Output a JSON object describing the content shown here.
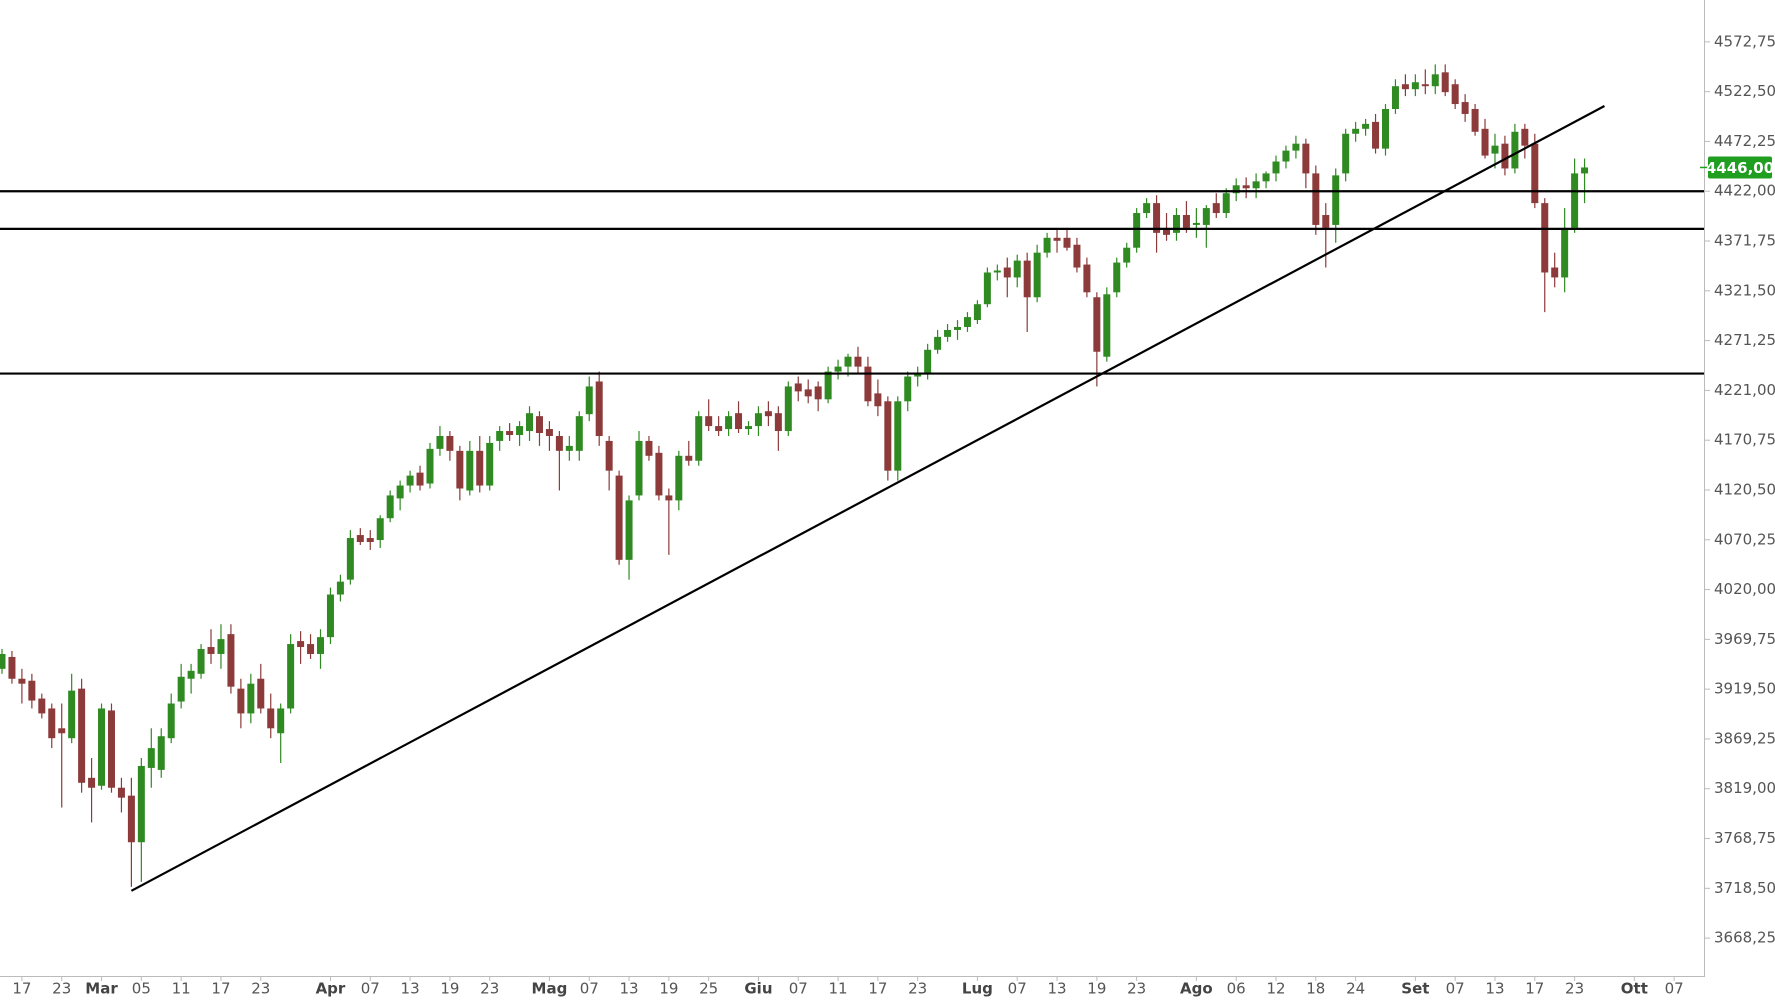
{
  "chart_data": {
    "type": "candlestick",
    "x": [
      "02-15",
      "02-16",
      "02-17",
      "02-18",
      "02-19",
      "02-22",
      "02-23",
      "02-24",
      "02-25",
      "02-26",
      "03-01",
      "03-02",
      "03-03",
      "03-04",
      "03-05",
      "03-08",
      "03-09",
      "03-10",
      "03-11",
      "03-12",
      "03-15",
      "03-16",
      "03-17",
      "03-18",
      "03-19",
      "03-22",
      "03-23",
      "03-24",
      "03-25",
      "03-26",
      "03-29",
      "03-30",
      "03-31",
      "04-01",
      "04-02",
      "04-05",
      "04-06",
      "04-07",
      "04-08",
      "04-09",
      "04-12",
      "04-13",
      "04-14",
      "04-15",
      "04-16",
      "04-19",
      "04-20",
      "04-21",
      "04-22",
      "04-23",
      "04-26",
      "04-27",
      "04-28",
      "04-29",
      "04-30",
      "05-03",
      "05-04",
      "05-05",
      "05-06",
      "05-07",
      "05-10",
      "05-11",
      "05-12",
      "05-13",
      "05-14",
      "05-17",
      "05-18",
      "05-19",
      "05-20",
      "05-21",
      "05-24",
      "05-25",
      "05-26",
      "05-27",
      "05-28",
      "05-31",
      "06-01",
      "06-02",
      "06-03",
      "06-04",
      "06-07",
      "06-08",
      "06-09",
      "06-10",
      "06-11",
      "06-14",
      "06-15",
      "06-16",
      "06-17",
      "06-18",
      "06-21",
      "06-22",
      "06-23",
      "06-24",
      "06-25",
      "06-28",
      "06-29",
      "06-30",
      "07-01",
      "07-02",
      "07-05",
      "07-06",
      "07-07",
      "07-08",
      "07-09",
      "07-12",
      "07-13",
      "07-14",
      "07-15",
      "07-16",
      "07-19",
      "07-20",
      "07-21",
      "07-22",
      "07-23",
      "07-26",
      "07-27",
      "07-28",
      "07-29",
      "07-30",
      "08-02",
      "08-03",
      "08-04",
      "08-05",
      "08-06",
      "08-09",
      "08-10",
      "08-11",
      "08-12",
      "08-13",
      "08-16",
      "08-17",
      "08-18",
      "08-19",
      "08-20",
      "08-23",
      "08-24",
      "08-25",
      "08-26",
      "08-27",
      "08-30",
      "08-31",
      "09-01",
      "09-02",
      "09-03",
      "09-06",
      "09-07",
      "09-08",
      "09-09",
      "09-10",
      "09-13",
      "09-14",
      "09-15",
      "09-16",
      "09-17",
      "09-20",
      "09-21",
      "09-22",
      "09-23",
      "09-24",
      "09-27",
      "09-28",
      "09-29",
      "09-30",
      "10-01",
      "10-04",
      "10-05",
      "10-06",
      "10-07",
      "10-08",
      "10-11",
      "10-12"
    ],
    "open": [
      3940,
      3952,
      3930,
      3928,
      3910,
      3900,
      3880,
      3870,
      3920,
      3830,
      3822,
      3898,
      3820,
      3812,
      3765,
      3840,
      3838,
      3870,
      3907,
      3930,
      3935,
      3962,
      3955,
      3975,
      3920,
      3895,
      3930,
      3900,
      3875,
      3900,
      3968,
      3965,
      3955,
      3972,
      4015,
      4030,
      4075,
      4072,
      4070,
      4092,
      4112,
      4125,
      4138,
      4127,
      4162,
      4175,
      4160,
      4120,
      4160,
      4125,
      4170,
      4180,
      4176,
      4180,
      4195,
      4182,
      4175,
      4160,
      4160,
      4197,
      4230,
      4170,
      4135,
      4050,
      4115,
      4170,
      4158,
      4115,
      4110,
      4155,
      4150,
      4195,
      4185,
      4182,
      4198,
      4182,
      4185,
      4200,
      4198,
      4180,
      4228,
      4222,
      4225,
      4212,
      4240,
      4245,
      4255,
      4245,
      4218,
      4210,
      4140,
      4210,
      4235,
      4238,
      4262,
      4275,
      4282,
      4285,
      4292,
      4308,
      4340,
      4345,
      4335,
      4352,
      4315,
      4360,
      4375,
      4375,
      4368,
      4348,
      4315,
      4255,
      4320,
      4350,
      4365,
      4400,
      4410,
      4385,
      4380,
      4398,
      4388,
      4388,
      4410,
      4400,
      4420,
      4428,
      4425,
      4432,
      4440,
      4452,
      4463,
      4470,
      4440,
      4398,
      4388,
      4440,
      4480,
      4485,
      4492,
      4465,
      4505,
      4530,
      4525,
      4530,
      4528,
      4542,
      4530,
      4512,
      4505,
      4485,
      4460,
      4470,
      4445,
      4485,
      4470,
      4410,
      4345,
      4335,
      4385,
      4440,
      null,
      null,
      null,
      null,
      null,
      null,
      null,
      null,
      null,
      null,
      null,
      null
    ],
    "high": [
      3960,
      3958,
      3940,
      3935,
      3915,
      3905,
      3905,
      3935,
      3930,
      3850,
      3905,
      3905,
      3830,
      3830,
      3850,
      3880,
      3880,
      3915,
      3945,
      3945,
      3965,
      3980,
      3985,
      3985,
      3930,
      3935,
      3945,
      3915,
      3905,
      3975,
      3978,
      3975,
      3980,
      4022,
      4035,
      4080,
      4082,
      4080,
      4095,
      4120,
      4130,
      4140,
      4145,
      4168,
      4185,
      4180,
      4165,
      4170,
      4175,
      4175,
      4185,
      4188,
      4190,
      4205,
      4200,
      4190,
      4180,
      4175,
      4200,
      4235,
      4240,
      4175,
      4140,
      4115,
      4180,
      4175,
      4165,
      4122,
      4160,
      4170,
      4200,
      4212,
      4195,
      4200,
      4210,
      4190,
      4205,
      4210,
      4205,
      4230,
      4235,
      4232,
      4230,
      4245,
      4252,
      4258,
      4265,
      4255,
      4232,
      4215,
      4215,
      4240,
      4245,
      4268,
      4282,
      4288,
      4292,
      4300,
      4312,
      4345,
      4348,
      4355,
      4358,
      4360,
      4368,
      4380,
      4385,
      4385,
      4375,
      4355,
      4320,
      4325,
      4355,
      4370,
      4405,
      4415,
      4418,
      4400,
      4405,
      4412,
      4405,
      4408,
      4420,
      4425,
      4435,
      4436,
      4440,
      4442,
      4458,
      4468,
      4478,
      4475,
      4448,
      4410,
      4445,
      4485,
      4492,
      4495,
      4500,
      4510,
      4535,
      4540,
      4540,
      4545,
      4550,
      4550,
      4535,
      4520,
      4510,
      4495,
      4480,
      4478,
      4490,
      4490,
      4480,
      4415,
      4360,
      4405,
      4455,
      4455,
      null,
      null,
      null,
      null,
      null,
      null,
      null,
      null,
      null,
      null,
      null,
      null
    ],
    "low": [
      3935,
      3925,
      3905,
      3900,
      3890,
      3860,
      3800,
      3865,
      3815,
      3785,
      3818,
      3815,
      3795,
      3720,
      3725,
      3820,
      3830,
      3865,
      3900,
      3915,
      3930,
      3945,
      3940,
      3915,
      3880,
      3885,
      3895,
      3870,
      3845,
      3895,
      3945,
      3950,
      3940,
      3965,
      4008,
      4025,
      4065,
      4060,
      4062,
      4088,
      4100,
      4118,
      4120,
      4122,
      4155,
      4150,
      4110,
      4115,
      4118,
      4120,
      4160,
      4170,
      4165,
      4170,
      4165,
      4160,
      4120,
      4150,
      4150,
      4190,
      4165,
      4120,
      4045,
      4030,
      4110,
      4150,
      4110,
      4055,
      4100,
      4145,
      4145,
      4180,
      4175,
      4175,
      4178,
      4176,
      4175,
      4185,
      4160,
      4175,
      4210,
      4208,
      4200,
      4208,
      4232,
      4235,
      4238,
      4205,
      4195,
      4130,
      4130,
      4200,
      4225,
      4232,
      4258,
      4270,
      4272,
      4280,
      4288,
      4305,
      4332,
      4315,
      4325,
      4280,
      4310,
      4355,
      4360,
      4362,
      4340,
      4315,
      4225,
      4250,
      4315,
      4345,
      4360,
      4395,
      4360,
      4372,
      4372,
      4380,
      4375,
      4365,
      4395,
      4395,
      4412,
      4415,
      4415,
      4425,
      4432,
      4445,
      4455,
      4425,
      4378,
      4345,
      4370,
      4432,
      4472,
      4478,
      4460,
      4458,
      4500,
      4518,
      4518,
      4520,
      4520,
      4518,
      4505,
      4492,
      4478,
      4455,
      4445,
      4438,
      4440,
      4455,
      4405,
      4300,
      4325,
      4320,
      4380,
      4410,
      null,
      null,
      null,
      null,
      null,
      null,
      null,
      null,
      null,
      null,
      null,
      null
    ],
    "close": [
      3955,
      3930,
      3925,
      3908,
      3895,
      3870,
      3875,
      3918,
      3825,
      3820,
      3900,
      3820,
      3810,
      3765,
      3842,
      3860,
      3872,
      3905,
      3932,
      3938,
      3960,
      3955,
      3970,
      3922,
      3895,
      3925,
      3900,
      3880,
      3900,
      3965,
      3962,
      3955,
      3972,
      4015,
      4028,
      4072,
      4068,
      4068,
      4092,
      4115,
      4125,
      4135,
      4125,
      4162,
      4175,
      4160,
      4122,
      4160,
      4125,
      4168,
      4180,
      4176,
      4185,
      4198,
      4178,
      4175,
      4160,
      4165,
      4195,
      4225,
      4175,
      4140,
      4050,
      4110,
      4170,
      4155,
      4115,
      4110,
      4155,
      4150,
      4195,
      4185,
      4180,
      4195,
      4182,
      4185,
      4198,
      4195,
      4180,
      4225,
      4220,
      4215,
      4212,
      4240,
      4245,
      4255,
      4245,
      4210,
      4205,
      4140,
      4210,
      4235,
      4238,
      4262,
      4275,
      4282,
      4285,
      4295,
      4308,
      4340,
      4342,
      4335,
      4352,
      4315,
      4360,
      4375,
      4372,
      4365,
      4345,
      4320,
      4260,
      4318,
      4350,
      4365,
      4400,
      4410,
      4380,
      4378,
      4398,
      4385,
      4390,
      4405,
      4400,
      4420,
      4428,
      4425,
      4432,
      4440,
      4452,
      4463,
      4470,
      4440,
      4388,
      4385,
      4438,
      4480,
      4485,
      4490,
      4465,
      4505,
      4528,
      4525,
      4532,
      4528,
      4540,
      4522,
      4510,
      4500,
      4482,
      4458,
      4468,
      4445,
      4482,
      4468,
      4410,
      4340,
      4335,
      4385,
      4440,
      4446,
      null,
      null,
      null,
      null,
      null,
      null,
      null,
      null,
      null,
      null,
      null,
      null
    ],
    "up_color": "#2f8a22",
    "down_color": "#8c3a3a",
    "ylim": [
      3630,
      4615
    ],
    "yticks": [
      {
        "value": 3668.25,
        "label": "3668,25"
      },
      {
        "value": 3718.5,
        "label": "3718,50"
      },
      {
        "value": 3768.75,
        "label": "3768,75"
      },
      {
        "value": 3819,
        "label": "3819,00"
      },
      {
        "value": 3869.25,
        "label": "3869,25"
      },
      {
        "value": 3919.5,
        "label": "3919,50"
      },
      {
        "value": 3969.75,
        "label": "3969,75"
      },
      {
        "value": 4020,
        "label": "4020,00"
      },
      {
        "value": 4070.25,
        "label": "4070,25"
      },
      {
        "value": 4120.5,
        "label": "4120,50"
      },
      {
        "value": 4170.75,
        "label": "4170,75"
      },
      {
        "value": 4221,
        "label": "4221,00"
      },
      {
        "value": 4271.25,
        "label": "4271,25"
      },
      {
        "value": 4321.5,
        "label": "4321,50"
      },
      {
        "value": 4371.75,
        "label": "4371,75"
      },
      {
        "value": 4422,
        "label": "4422,00"
      },
      {
        "value": 4472.25,
        "label": "4472,25"
      },
      {
        "value": 4522.5,
        "label": "4522,50"
      },
      {
        "value": 4572.75,
        "label": "4572,75"
      }
    ],
    "xticks": [
      {
        "value": "02-17",
        "label": "17"
      },
      {
        "value": "02-23",
        "label": "23"
      },
      {
        "value": "03-01",
        "label": "Mar"
      },
      {
        "value": "03-05",
        "label": "05"
      },
      {
        "value": "03-11",
        "label": "11"
      },
      {
        "value": "03-17",
        "label": "17"
      },
      {
        "value": "03-23",
        "label": "23"
      },
      {
        "value": "04-01",
        "label": "Apr"
      },
      {
        "value": "04-07",
        "label": "07"
      },
      {
        "value": "04-13",
        "label": "13"
      },
      {
        "value": "04-19",
        "label": "19"
      },
      {
        "value": "04-23",
        "label": "23"
      },
      {
        "value": "05-03",
        "label": "Mag"
      },
      {
        "value": "05-07",
        "label": "07"
      },
      {
        "value": "05-13",
        "label": "13"
      },
      {
        "value": "05-19",
        "label": "19"
      },
      {
        "value": "05-25",
        "label": "25"
      },
      {
        "value": "06-01",
        "label": "Giu"
      },
      {
        "value": "06-07",
        "label": "07"
      },
      {
        "value": "06-11",
        "label": "11"
      },
      {
        "value": "06-17",
        "label": "17"
      },
      {
        "value": "06-23",
        "label": "23"
      },
      {
        "value": "07-01",
        "label": "Lug"
      },
      {
        "value": "07-07",
        "label": "07"
      },
      {
        "value": "07-13",
        "label": "13"
      },
      {
        "value": "07-19",
        "label": "19"
      },
      {
        "value": "07-23",
        "label": "23"
      },
      {
        "value": "08-02",
        "label": "Ago"
      },
      {
        "value": "08-06",
        "label": "06"
      },
      {
        "value": "08-12",
        "label": "12"
      },
      {
        "value": "08-18",
        "label": "18"
      },
      {
        "value": "08-24",
        "label": "24"
      },
      {
        "value": "09-01",
        "label": "Set"
      },
      {
        "value": "09-07",
        "label": "07"
      },
      {
        "value": "09-13",
        "label": "13"
      },
      {
        "value": "09-17",
        "label": "17"
      },
      {
        "value": "09-23",
        "label": "23"
      },
      {
        "value": "10-01",
        "label": "Ott"
      },
      {
        "value": "10-07",
        "label": "07"
      }
    ],
    "hlines": [
      4422,
      4384,
      4238
    ],
    "trendline": {
      "x": [
        "03-04",
        "09-28"
      ],
      "values": [
        3716,
        4508
      ]
    },
    "last_price": {
      "value": 4446,
      "label": "4446,00",
      "color": "#1f9e1f"
    }
  }
}
